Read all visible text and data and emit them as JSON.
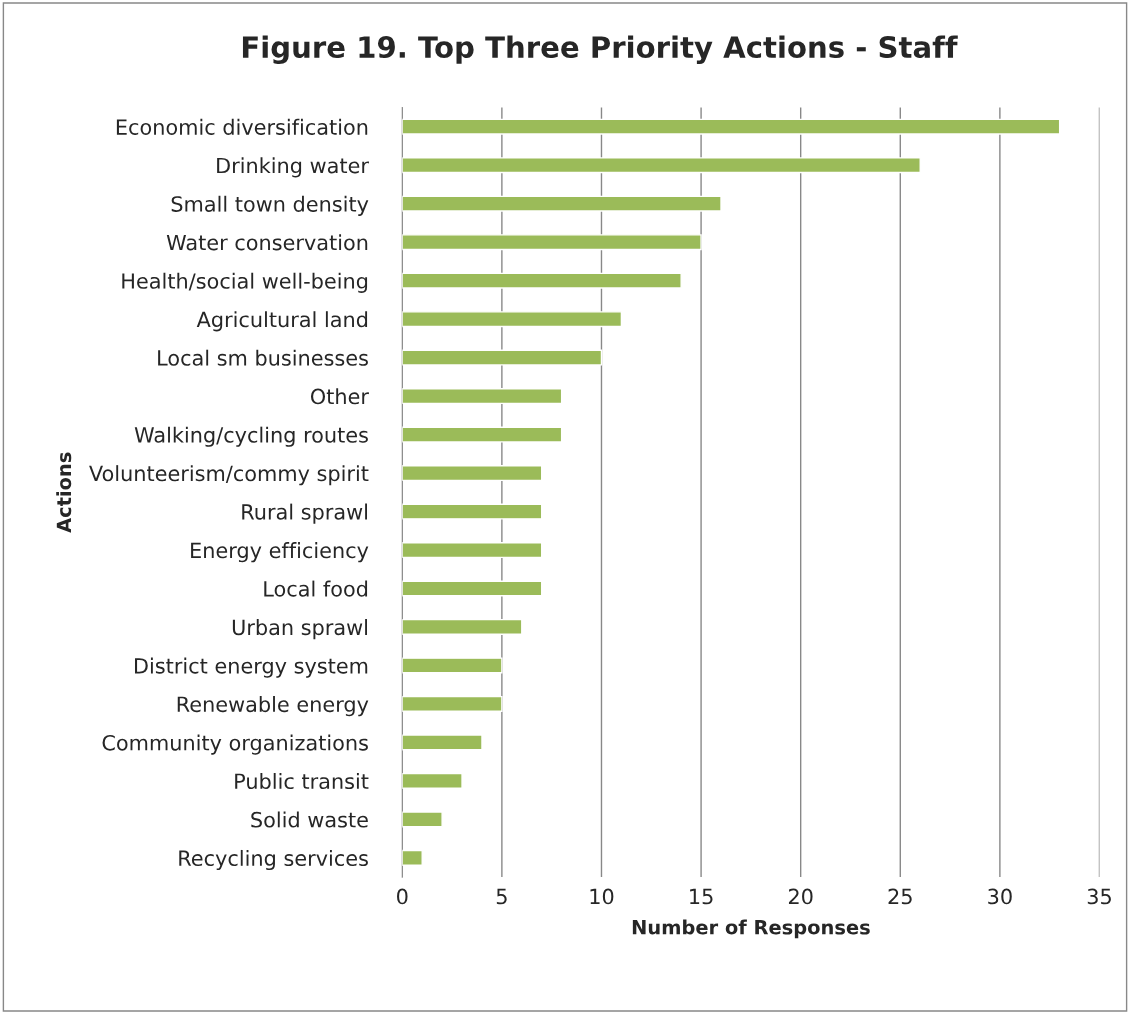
{
  "chart_data": {
    "type": "bar",
    "orientation": "horizontal",
    "title": "Figure 19. Top Three Priority Actions - Staff",
    "xlabel": "Number of Responses",
    "ylabel": "Actions",
    "categories": [
      "Economic diversification",
      "Drinking water",
      "Small town density",
      "Water conservation",
      "Health/social well-being",
      "Agricultural land",
      "Local sm businesses",
      "Other",
      "Walking/cycling routes",
      "Volunteerism/commy spirit",
      "Rural sprawl",
      "Energy efficiency",
      "Local food",
      "Urban sprawl",
      "District energy system",
      "Renewable energy",
      "Community organizations",
      "Public transit",
      "Solid waste",
      "Recycling services"
    ],
    "values": [
      33,
      26,
      16,
      15,
      14,
      11,
      10,
      8,
      8,
      7,
      7,
      7,
      7,
      6,
      5,
      5,
      4,
      3,
      2,
      1
    ],
    "color": "#9bbb59",
    "xlim": [
      0,
      35
    ],
    "xticks": [
      0,
      5,
      10,
      15,
      20,
      25,
      30,
      35
    ],
    "grid": "x",
    "legend": false
  }
}
